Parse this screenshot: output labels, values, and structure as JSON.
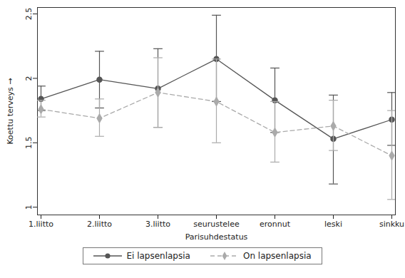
{
  "chart_data": {
    "type": "line",
    "x_label": "Parisuhdestatus",
    "y_label": "Koettu terveys",
    "categories": [
      "1.liitto",
      "2.liitto",
      "3.liitto",
      "seurustelee",
      "eronnut",
      "leski",
      "sinkku"
    ],
    "ylim": [
      0.94,
      2.55
    ],
    "yticks": [
      1,
      1.5,
      2,
      2.5
    ],
    "grid": false,
    "legend": "bottom",
    "series": [
      {
        "name": "Ei lapsenlapsia",
        "color": "#555555",
        "marker": "circle",
        "line_style": "solid",
        "values": [
          1.84,
          1.99,
          1.92,
          2.15,
          1.83,
          1.53,
          1.68
        ],
        "lower": [
          1.75,
          1.77,
          1.62,
          1.82,
          1.58,
          1.18,
          1.48
        ],
        "upper": [
          1.94,
          2.21,
          2.23,
          2.49,
          2.08,
          1.87,
          1.89
        ]
      },
      {
        "name": "On lapsenlapsia",
        "color": "#aaaaaa",
        "marker": "diamond",
        "line_style": "dashed",
        "values": [
          1.76,
          1.69,
          1.89,
          1.82,
          1.58,
          1.63,
          1.4
        ],
        "lower": [
          1.7,
          1.55,
          1.62,
          1.5,
          1.35,
          1.44,
          1.06
        ],
        "upper": [
          1.83,
          1.84,
          2.16,
          2.15,
          1.82,
          1.83,
          1.75
        ]
      }
    ]
  }
}
